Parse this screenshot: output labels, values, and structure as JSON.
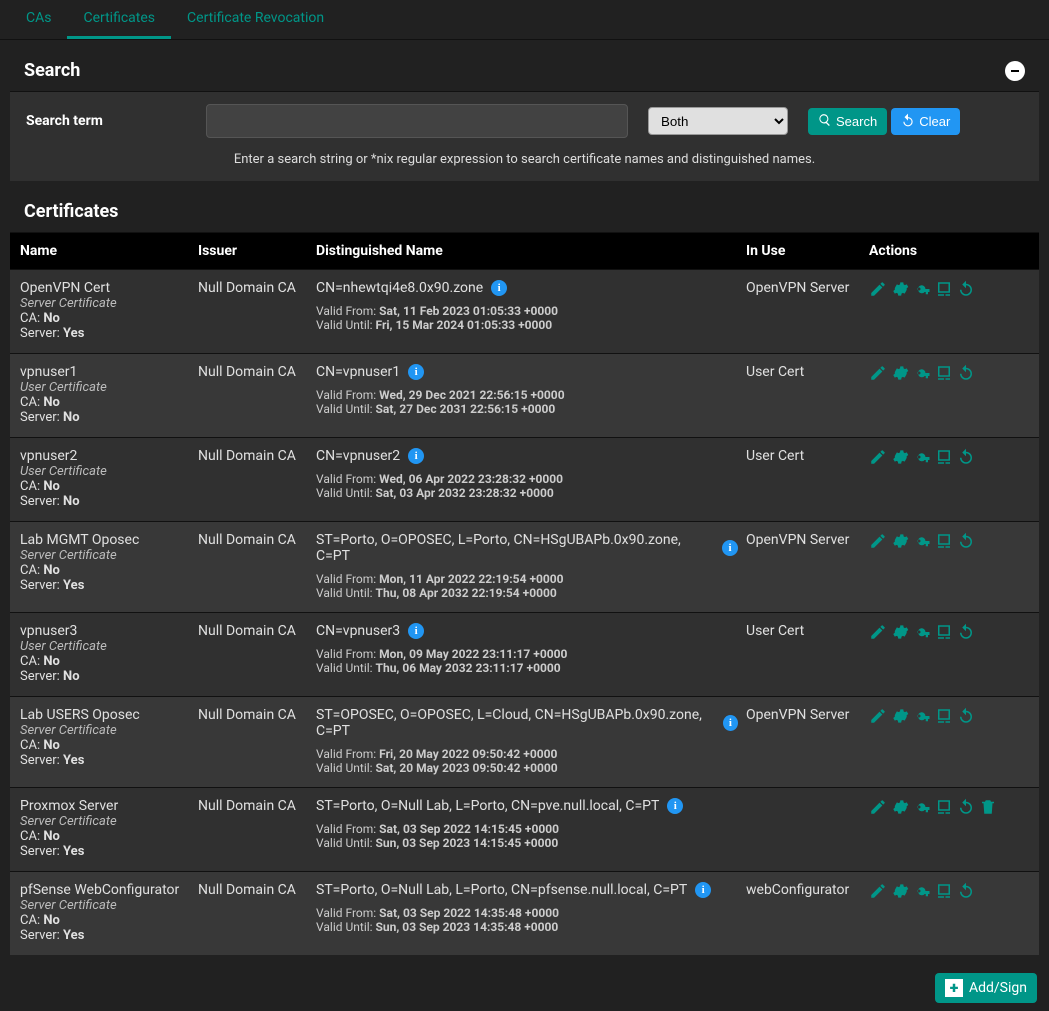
{
  "theme": {
    "bg": "#212121",
    "panel_bg": "#303030",
    "row_alt_bg": "#383838",
    "header_bg": "#000000",
    "text": "#e0e0e0",
    "muted": "#bdbdbd",
    "accent": "#009688",
    "info_blue": "#2196f3"
  },
  "tabs": {
    "items": [
      {
        "label": "CAs",
        "active": false
      },
      {
        "label": "Certificates",
        "active": true
      },
      {
        "label": "Certificate Revocation",
        "active": false
      }
    ]
  },
  "search": {
    "title": "Search",
    "term_label": "Search term",
    "input_value": "",
    "select_value": "Both",
    "search_btn": "Search",
    "clear_btn": "Clear",
    "hint": "Enter a search string or *nix regular expression to search certificate names and distinguished names."
  },
  "certificates": {
    "title": "Certificates",
    "columns": {
      "name": "Name",
      "issuer": "Issuer",
      "dn": "Distinguished Name",
      "inuse": "In Use",
      "actions": "Actions"
    },
    "labels": {
      "valid_from": "Valid From:",
      "valid_until": "Valid Until:",
      "ca": "CA:",
      "server": "Server:"
    },
    "rows": [
      {
        "name": "OpenVPN Cert",
        "type": "Server Certificate",
        "ca": "No",
        "server": "Yes",
        "issuer": "Null Domain CA",
        "dn": "CN=nhewtqi4e8.0x90.zone",
        "valid_from": "Sat, 11 Feb 2023 01:05:33 +0000",
        "valid_until": "Fri, 15 Mar 2024 01:05:33 +0000",
        "in_use": "OpenVPN Server",
        "can_delete": false
      },
      {
        "name": "vpnuser1",
        "type": "User Certificate",
        "ca": "No",
        "server": "No",
        "issuer": "Null Domain CA",
        "dn": "CN=vpnuser1",
        "valid_from": "Wed, 29 Dec 2021 22:56:15 +0000",
        "valid_until": "Sat, 27 Dec 2031 22:56:15 +0000",
        "in_use": "User Cert",
        "can_delete": false
      },
      {
        "name": "vpnuser2",
        "type": "User Certificate",
        "ca": "No",
        "server": "No",
        "issuer": "Null Domain CA",
        "dn": "CN=vpnuser2",
        "valid_from": "Wed, 06 Apr 2022 23:28:32 +0000",
        "valid_until": "Sat, 03 Apr 2032 23:28:32 +0000",
        "in_use": "User Cert",
        "can_delete": false
      },
      {
        "name": "Lab MGMT Oposec",
        "type": "Server Certificate",
        "ca": "No",
        "server": "Yes",
        "issuer": "Null Domain CA",
        "dn": "ST=Porto, O=OPOSEC, L=Porto, CN=HSgUBAPb.0x90.zone, C=PT",
        "valid_from": "Mon, 11 Apr 2022 22:19:54 +0000",
        "valid_until": "Thu, 08 Apr 2032 22:19:54 +0000",
        "in_use": "OpenVPN Server",
        "can_delete": false
      },
      {
        "name": "vpnuser3",
        "type": "User Certificate",
        "ca": "No",
        "server": "No",
        "issuer": "Null Domain CA",
        "dn": "CN=vpnuser3",
        "valid_from": "Mon, 09 May 2022 23:11:17 +0000",
        "valid_until": "Thu, 06 May 2032 23:11:17 +0000",
        "in_use": "User Cert",
        "can_delete": false
      },
      {
        "name": "Lab USERS Oposec",
        "type": "Server Certificate",
        "ca": "No",
        "server": "Yes",
        "issuer": "Null Domain CA",
        "dn": "ST=OPOSEC, O=OPOSEC, L=Cloud, CN=HSgUBAPb.0x90.zone, C=PT",
        "valid_from": "Fri, 20 May 2022 09:50:42 +0000",
        "valid_until": "Sat, 20 May 2023 09:50:42 +0000",
        "in_use": "OpenVPN Server",
        "can_delete": false
      },
      {
        "name": "Proxmox Server",
        "type": "Server Certificate",
        "ca": "No",
        "server": "Yes",
        "issuer": "Null Domain CA",
        "dn": "ST=Porto, O=Null Lab, L=Porto, CN=pve.null.local, C=PT",
        "valid_from": "Sat, 03 Sep 2022 14:15:45 +0000",
        "valid_until": "Sun, 03 Sep 2023 14:15:45 +0000",
        "in_use": "",
        "can_delete": true
      },
      {
        "name": "pfSense WebConfigurator",
        "type": "Server Certificate",
        "ca": "No",
        "server": "Yes",
        "issuer": "Null Domain CA",
        "dn": "ST=Porto, O=Null Lab, L=Porto, CN=pfsense.null.local, C=PT",
        "valid_from": "Sat, 03 Sep 2022 14:35:48 +0000",
        "valid_until": "Sun, 03 Sep 2023 14:35:48 +0000",
        "in_use": "webConfigurator",
        "can_delete": false
      }
    ]
  },
  "footer": {
    "add_label": "Add/Sign"
  }
}
